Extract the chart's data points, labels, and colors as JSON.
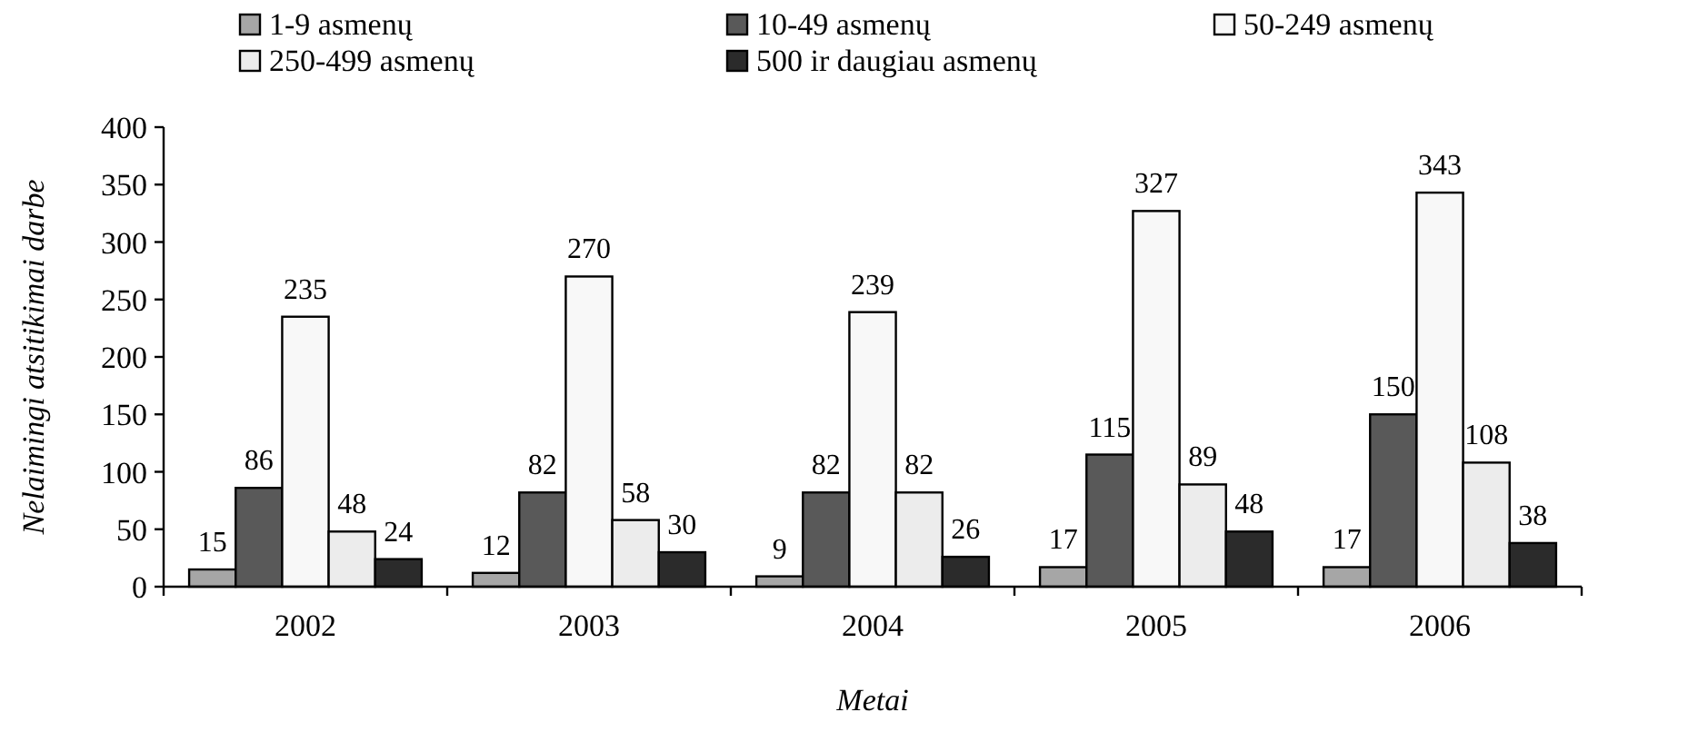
{
  "chart_data": {
    "type": "bar",
    "xlabel": "Metai",
    "ylabel": "Nelaimingi atsitikimai darbe",
    "categories": [
      "2002",
      "2003",
      "2004",
      "2005",
      "2006"
    ],
    "series": [
      {
        "name": "1-9 asmenų",
        "color": "#a6a6a6",
        "values": [
          15,
          12,
          9,
          17,
          17
        ]
      },
      {
        "name": "10-49 asmenų",
        "color": "#595959",
        "values": [
          86,
          82,
          82,
          115,
          150
        ]
      },
      {
        "name": "50-249 asmenų",
        "color": "#f8f8f8",
        "values": [
          235,
          270,
          239,
          327,
          343
        ]
      },
      {
        "name": "250-499 asmenų",
        "color": "#ececec",
        "values": [
          48,
          58,
          82,
          89,
          108
        ]
      },
      {
        "name": "500 ir daugiau asmenų",
        "color": "#2b2b2b",
        "values": [
          24,
          30,
          26,
          48,
          38
        ]
      }
    ],
    "ylim": [
      0,
      400
    ],
    "yticks": [
      0,
      50,
      100,
      150,
      200,
      250,
      300,
      350,
      400
    ],
    "data_labels": true,
    "legend": "top"
  }
}
